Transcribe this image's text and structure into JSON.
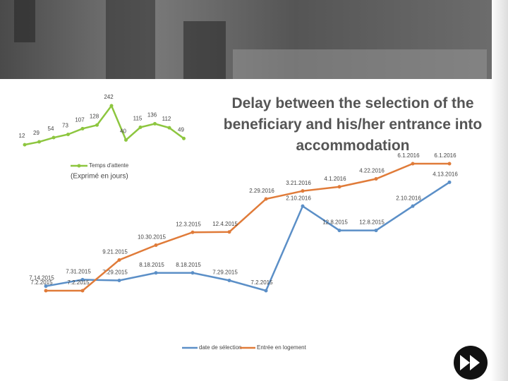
{
  "slide": {
    "title": "Delay between the selection of the beneficiary and his/her entrance into accommodation"
  },
  "chart_data": [
    {
      "type": "line",
      "legend": "Temps d'attente",
      "subtitle": "(Exprimé en jours)",
      "color": "#8dc63f",
      "values": [
        12,
        29,
        54,
        73,
        107,
        128,
        242,
        40,
        115,
        136,
        112,
        49
      ],
      "ylim": [
        0,
        250
      ]
    },
    {
      "type": "dateline",
      "series": [
        {
          "name": "date de sélection",
          "color": "#5b8fc7",
          "values": [
            "7.14.2015",
            "7.31.2015",
            "7.29.2015",
            "8.18.2015",
            "8.18.2015",
            "7.29.2015",
            "7.2.2015",
            "2.10.2016",
            "12.8.2015",
            "12.8.2015",
            "2.10.2016",
            "4.13.2016"
          ]
        },
        {
          "name": "Entrée en logement",
          "color": "#e07b39",
          "values": [
            "7.2.2015",
            "7.2.2015",
            "9.21.2015",
            "10.30.2015",
            "12.3.2015",
            "12.4.2015",
            "2.29.2016",
            "3.21.2016",
            "4.1.2016",
            "4.22.2016",
            "6.1.2016",
            "6.1.2016"
          ]
        }
      ]
    }
  ]
}
